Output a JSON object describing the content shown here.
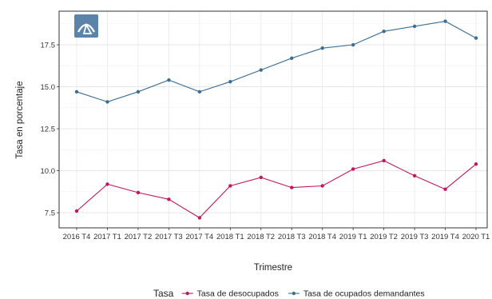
{
  "chart_data": {
    "type": "line",
    "xlabel": "Trimestre",
    "ylabel": "Tasa en porcentaje",
    "ylim": [
      6.6,
      19.5
    ],
    "yticks": [
      "7.5",
      "10.0",
      "12.5",
      "15.0",
      "17.5"
    ],
    "grid": true,
    "legend_title": "Tasa",
    "legend_position": "bottom",
    "categories": [
      "2016 T4",
      "2017 T1",
      "2017 T2",
      "2017 T3",
      "2017 T4",
      "2018 T1",
      "2018 T2",
      "2018 T3",
      "2018 T4",
      "2019 T1",
      "2019 T2",
      "2019 T3",
      "2019 T4",
      "2020 T1"
    ],
    "series": [
      {
        "name": "Tasa de desocupados",
        "color": "#c2185b",
        "values": [
          7.6,
          9.2,
          8.7,
          8.3,
          7.2,
          9.1,
          9.6,
          9.0,
          9.1,
          10.1,
          10.6,
          9.7,
          8.9,
          10.4
        ]
      },
      {
        "name": "Tasa de ocupados demandantes",
        "color": "#3b6e95",
        "values": [
          14.7,
          14.1,
          14.7,
          15.4,
          14.7,
          15.3,
          16.0,
          16.7,
          17.3,
          17.5,
          18.3,
          18.6,
          18.9,
          17.9
        ]
      }
    ]
  },
  "logo": {
    "icon": "logo-icon",
    "color": "#5b84a8"
  }
}
